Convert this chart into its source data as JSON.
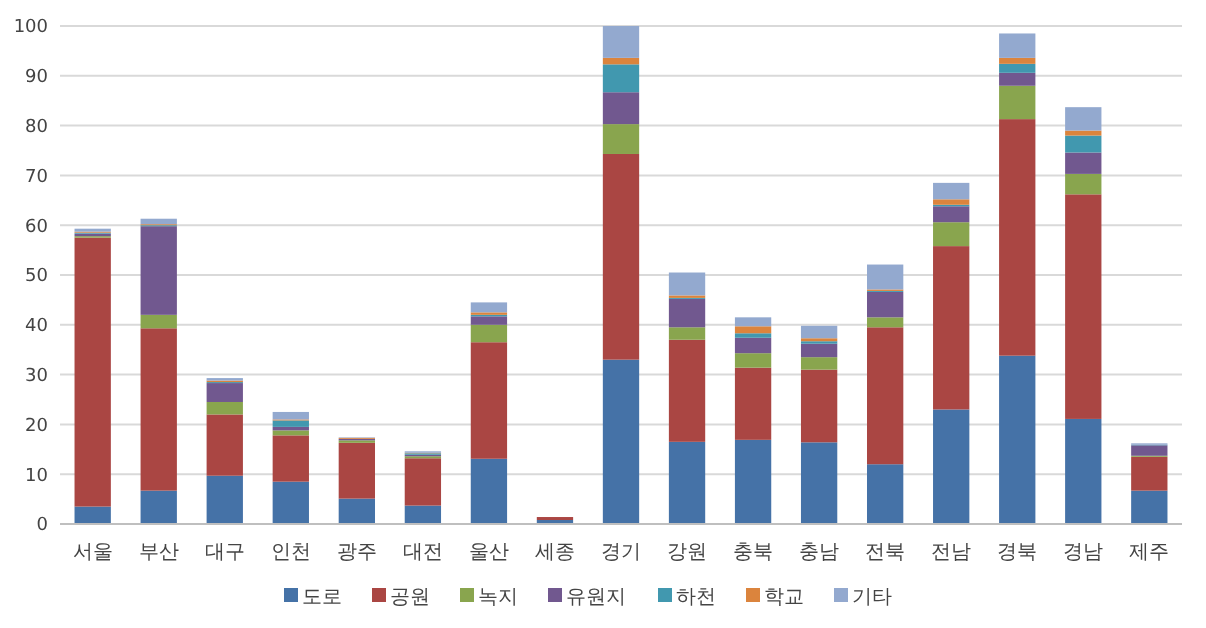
{
  "chart_data": {
    "type": "bar",
    "stacked": true,
    "categories": [
      "서울",
      "부산",
      "대구",
      "인천",
      "광주",
      "대전",
      "울산",
      "세종",
      "경기",
      "강원",
      "충북",
      "충남",
      "전북",
      "전남",
      "경북",
      "경남",
      "제주"
    ],
    "series": [
      {
        "name": "도로",
        "color": "#4572a7",
        "values": [
          3.5,
          6.7,
          9.7,
          8.5,
          5.1,
          3.7,
          13.1,
          0.8,
          33,
          16.5,
          16.9,
          16.4,
          12,
          23,
          33.8,
          21.1,
          6.7
        ]
      },
      {
        "name": "공원",
        "color": "#aa4643",
        "values": [
          54,
          32.6,
          12.3,
          9.3,
          11.2,
          9.5,
          23.4,
          0.6,
          41.3,
          20.5,
          14.5,
          14.6,
          27.5,
          32.8,
          47.5,
          45.1,
          6.8
        ]
      },
      {
        "name": "녹지",
        "color": "#89a54e",
        "values": [
          0.3,
          2.7,
          2.5,
          1,
          0.5,
          0.4,
          3.5,
          0,
          6,
          2.5,
          2.9,
          2.5,
          2,
          4.8,
          6.7,
          4.1,
          0.2
        ]
      },
      {
        "name": "유원지",
        "color": "#71588f",
        "values": [
          0.5,
          17.8,
          3.8,
          0.7,
          0.3,
          0.3,
          1.7,
          0,
          6.4,
          5.7,
          3.1,
          2.7,
          5.1,
          3.2,
          2.6,
          4.3,
          2.1
        ]
      },
      {
        "name": "하천",
        "color": "#4198af",
        "values": [
          0.2,
          0.2,
          0.2,
          1.3,
          0,
          0.3,
          0.3,
          0,
          5.6,
          0.2,
          0.9,
          0.5,
          0.2,
          0.3,
          1.8,
          3.4,
          0.1
        ]
      },
      {
        "name": "학교",
        "color": "#db843d",
        "values": [
          0.2,
          0.2,
          0.3,
          0.2,
          0.2,
          0.1,
          0.5,
          0,
          1.3,
          0.5,
          1.4,
          0.6,
          0.3,
          1.1,
          1.2,
          1,
          0
        ]
      },
      {
        "name": "기타",
        "color": "#93a9cf",
        "values": [
          0.6,
          1.1,
          0.5,
          1.5,
          0.1,
          0.3,
          2,
          null,
          6.4,
          4.6,
          1.8,
          2.5,
          5,
          3.3,
          4.9,
          4.7,
          0.3
        ]
      }
    ],
    "ylim": [
      0,
      100
    ],
    "yticks": [
      0,
      10,
      20,
      30,
      40,
      50,
      60,
      70,
      80,
      90,
      100
    ],
    "grid": "y",
    "legend": "bottom"
  }
}
